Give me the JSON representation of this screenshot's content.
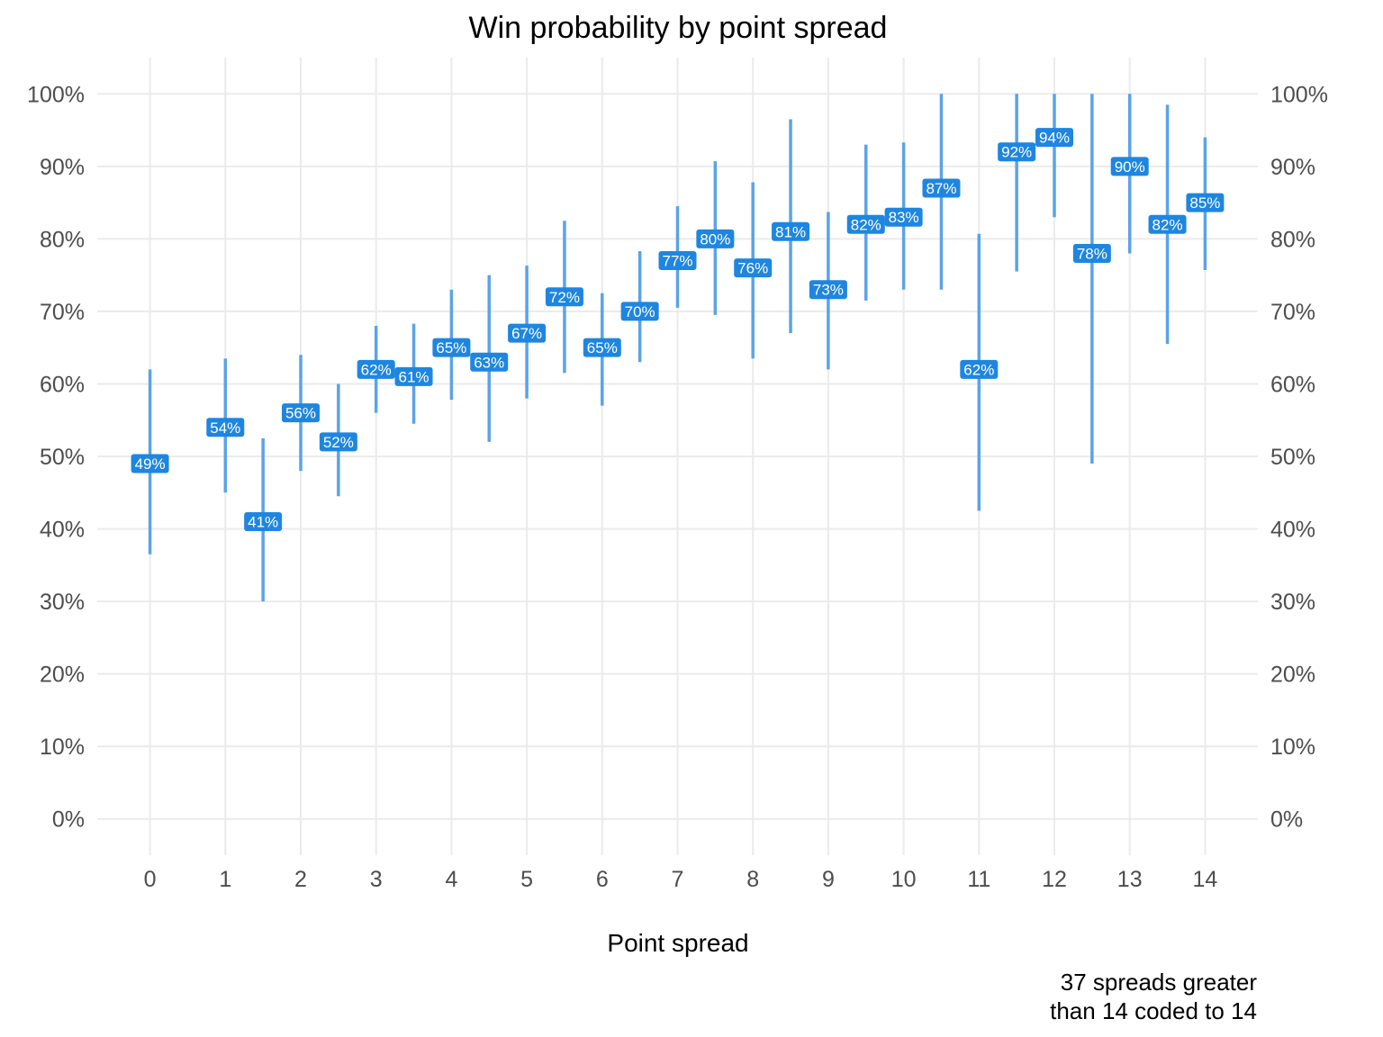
{
  "chart_data": {
    "type": "errorbar",
    "title": "Win probability by point spread",
    "xlabel": "Point spread",
    "ylabel": "",
    "caption_lines": [
      "37 spreads greater",
      "than 14 coded to 14"
    ],
    "x_ticks": [
      0,
      1,
      2,
      3,
      4,
      5,
      6,
      7,
      8,
      9,
      10,
      11,
      12,
      13,
      14
    ],
    "y_ticks": [
      0,
      0.1,
      0.2,
      0.3,
      0.4,
      0.5,
      0.6,
      0.7,
      0.8,
      0.9,
      1.0
    ],
    "y_tick_labels": [
      "0%",
      "10%",
      "20%",
      "30%",
      "40%",
      "50%",
      "60%",
      "70%",
      "80%",
      "90%",
      "100%"
    ],
    "xlim": [
      -0.7,
      14.7
    ],
    "ylim": [
      -0.05,
      1.05
    ],
    "secondary_y_axis": true,
    "grid": true,
    "colors": {
      "bar": "#5ba3e6",
      "label_bg": "#1e86e0",
      "label_text": "#ffffff",
      "grid": "#ebebeb"
    },
    "points": [
      {
        "x": 0,
        "y": 0.49,
        "lo": 0.365,
        "hi": 0.62,
        "label": "49%"
      },
      {
        "x": 1,
        "y": 0.54,
        "lo": 0.45,
        "hi": 0.635,
        "label": "54%"
      },
      {
        "x": 1.5,
        "y": 0.41,
        "lo": 0.3,
        "hi": 0.525,
        "label": "41%"
      },
      {
        "x": 2,
        "y": 0.56,
        "lo": 0.48,
        "hi": 0.64,
        "label": "56%"
      },
      {
        "x": 2.5,
        "y": 0.52,
        "lo": 0.445,
        "hi": 0.6,
        "label": "52%"
      },
      {
        "x": 3,
        "y": 0.62,
        "lo": 0.56,
        "hi": 0.68,
        "label": "62%"
      },
      {
        "x": 3.5,
        "y": 0.61,
        "lo": 0.545,
        "hi": 0.683,
        "label": "61%"
      },
      {
        "x": 4,
        "y": 0.65,
        "lo": 0.578,
        "hi": 0.73,
        "label": "65%"
      },
      {
        "x": 4.5,
        "y": 0.63,
        "lo": 0.52,
        "hi": 0.75,
        "label": "63%"
      },
      {
        "x": 5,
        "y": 0.67,
        "lo": 0.58,
        "hi": 0.763,
        "label": "67%"
      },
      {
        "x": 5.5,
        "y": 0.72,
        "lo": 0.615,
        "hi": 0.825,
        "label": "72%"
      },
      {
        "x": 6,
        "y": 0.65,
        "lo": 0.57,
        "hi": 0.725,
        "label": "65%"
      },
      {
        "x": 6.5,
        "y": 0.7,
        "lo": 0.63,
        "hi": 0.783,
        "label": "70%"
      },
      {
        "x": 7,
        "y": 0.77,
        "lo": 0.705,
        "hi": 0.845,
        "label": "77%"
      },
      {
        "x": 7.5,
        "y": 0.8,
        "lo": 0.695,
        "hi": 0.907,
        "label": "80%"
      },
      {
        "x": 8,
        "y": 0.76,
        "lo": 0.635,
        "hi": 0.878,
        "label": "76%"
      },
      {
        "x": 8.5,
        "y": 0.81,
        "lo": 0.67,
        "hi": 0.965,
        "label": "81%"
      },
      {
        "x": 9,
        "y": 0.73,
        "lo": 0.62,
        "hi": 0.837,
        "label": "73%"
      },
      {
        "x": 9.5,
        "y": 0.82,
        "lo": 0.715,
        "hi": 0.93,
        "label": "82%"
      },
      {
        "x": 10,
        "y": 0.83,
        "lo": 0.73,
        "hi": 0.933,
        "label": "83%"
      },
      {
        "x": 10.5,
        "y": 0.87,
        "lo": 0.73,
        "hi": 1.0,
        "label": "87%"
      },
      {
        "x": 11,
        "y": 0.62,
        "lo": 0.425,
        "hi": 0.807,
        "label": "62%"
      },
      {
        "x": 11.5,
        "y": 0.92,
        "lo": 0.755,
        "hi": 1.0,
        "label": "92%"
      },
      {
        "x": 12,
        "y": 0.94,
        "lo": 0.83,
        "hi": 1.0,
        "label": "94%"
      },
      {
        "x": 12.5,
        "y": 0.78,
        "lo": 0.49,
        "hi": 1.0,
        "label": "78%"
      },
      {
        "x": 13,
        "y": 0.9,
        "lo": 0.78,
        "hi": 1.0,
        "label": "90%"
      },
      {
        "x": 13.5,
        "y": 0.82,
        "lo": 0.655,
        "hi": 0.985,
        "label": "82%"
      },
      {
        "x": 14,
        "y": 0.85,
        "lo": 0.757,
        "hi": 0.94,
        "label": "85%"
      }
    ]
  }
}
